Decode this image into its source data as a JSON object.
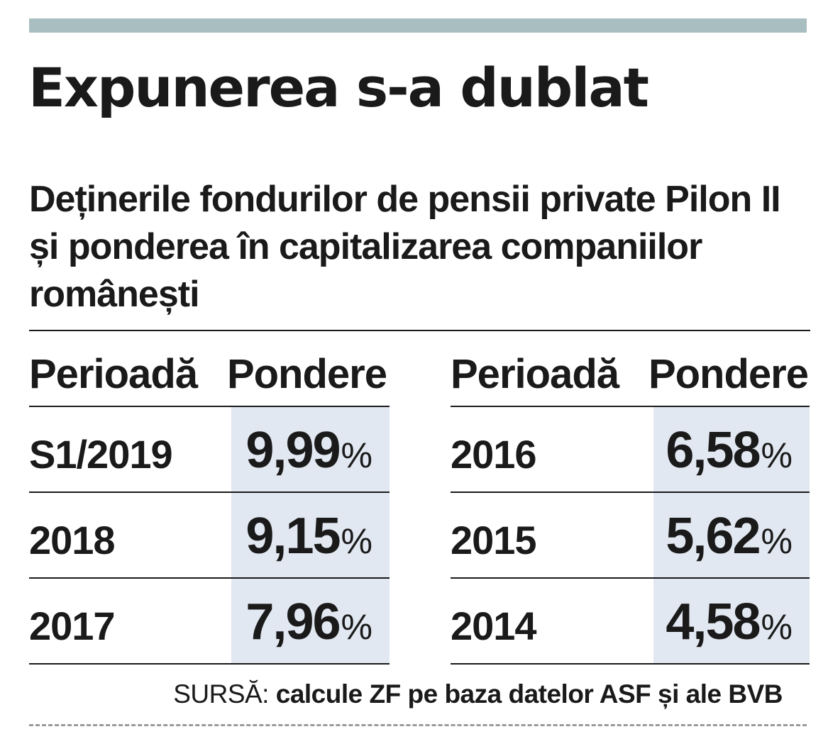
{
  "chart_data": {
    "type": "table",
    "title": "Expunerea s-a dublat",
    "subtitle": "Deținerile fondurilor de pensii private Pilon II și ponderea în capitalizarea companiilor românești",
    "columns": [
      "Perioadă",
      "Pondere"
    ],
    "rows": [
      {
        "period": "S1/2019",
        "value": "9,99",
        "unit": "%"
      },
      {
        "period": "2018",
        "value": "9,15",
        "unit": "%"
      },
      {
        "period": "2017",
        "value": "7,96",
        "unit": "%"
      },
      {
        "period": "2016",
        "value": "6,58",
        "unit": "%"
      },
      {
        "period": "2015",
        "value": "5,62",
        "unit": "%"
      },
      {
        "period": "2014",
        "value": "4,58",
        "unit": "%"
      }
    ]
  },
  "source": {
    "label": "SURSĂ:",
    "text": "calcule ZF pe baza datelor ASF și ale BVB"
  },
  "colors": {
    "top_bar": "#a9bec0",
    "value_cell": "#e2e8f1",
    "text": "#1a1a1a"
  }
}
